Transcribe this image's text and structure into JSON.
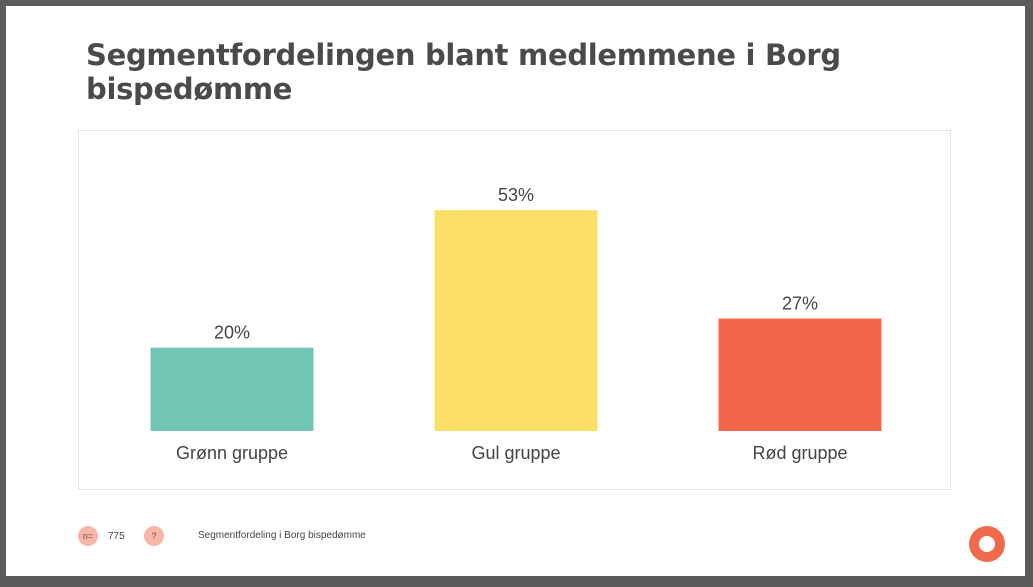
{
  "slide": {
    "title": "Segmentfordelingen blant medlemmene i Borg bispedømme"
  },
  "footer": {
    "n_badge": "n=",
    "n_value": "775",
    "help_badge": "?",
    "caption": "Segmentfordeling i Borg bispedømme"
  },
  "logo": {
    "icon": "circle-ring-logo",
    "color": "#ee6a4a"
  },
  "chart_data": {
    "type": "bar",
    "categories": [
      "Grønn gruppe",
      "Gul gruppe",
      "Rød gruppe"
    ],
    "values": [
      20,
      53,
      27
    ],
    "value_labels": [
      "20%",
      "53%",
      "27%"
    ],
    "colors": [
      "#72c4b5",
      "#fbdf66",
      "#f2664a"
    ],
    "title": "",
    "xlabel": "",
    "ylabel": "",
    "ylim": [
      0,
      60
    ],
    "grid": false,
    "legend": "none"
  }
}
